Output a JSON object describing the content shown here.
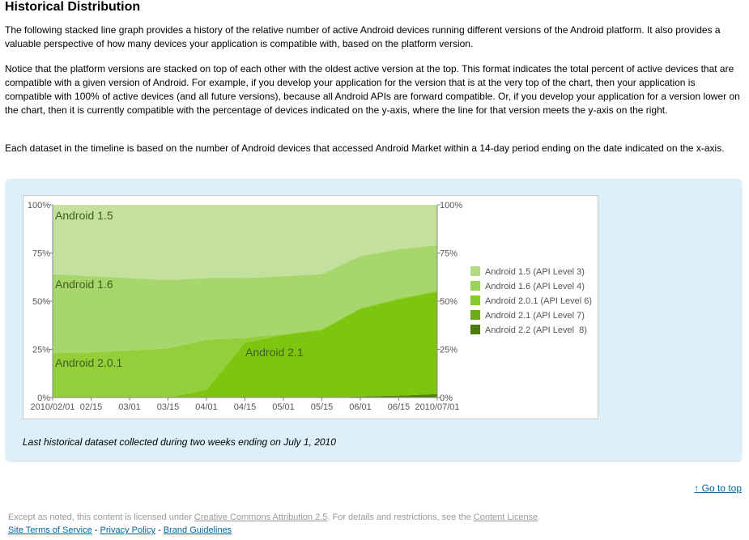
{
  "header": {
    "title": "Historical Distribution"
  },
  "paragraphs": [
    "The following stacked line graph provides a history of the relative number of active Android devices running different versions of the Android platform. It also provides a valuable perspective of how many devices your application is compatible with, based on the platform version.",
    "Notice that the platform versions are stacked on top of each other with the oldest active version at the top. This format indicates the total percent of active devices that are compatible with a given version of Android. For example, if you develop your application for the version that is at the very top of the chart, then your application is compatible with 100% of active devices (and all future versions), because all Android APIs are forward compatible. Or, if you develop your application for a version lower on the chart, then it is currently compatible with the percentage of devices indicated on the y-axis, where the line for that version meets the y-axis on the right.",
    "Each dataset in the timeline is based on the number of Android devices that accessed Android Market within a 14-day period ending on the date indicated on the x-axis."
  ],
  "chart_data": {
    "type": "stacked_area",
    "x": [
      "2010/02/01",
      "02/15",
      "03/01",
      "03/15",
      "04/01",
      "04/15",
      "05/01",
      "05/15",
      "06/01",
      "06/15",
      "2010/07/01"
    ],
    "series": [
      {
        "name": "Android 1.5 (API Level 3)",
        "color": "#c3e09d",
        "legend_color": "#b3da85",
        "values": [
          36,
          37,
          38,
          39,
          38,
          38,
          37,
          36,
          26.5,
          23,
          21
        ]
      },
      {
        "name": "Android 1.6 (API Level 4)",
        "color": "#a6d66c",
        "legend_color": "#9cd25a",
        "values": [
          41,
          39.5,
          37.5,
          35.5,
          32,
          31,
          30,
          28.5,
          27,
          25.5,
          23.5
        ]
      },
      {
        "name": "Android 2.0.1 (API Level 6)",
        "color": "#93cf3a",
        "legend_color": "#88c92e",
        "values": [
          23,
          23.5,
          24.5,
          25.5,
          26,
          2.5,
          0.5,
          0.5,
          0.5,
          0.5,
          0.5
        ]
      },
      {
        "name": "Android 2.1 (API Level 7)",
        "color": "#7ec511",
        "legend_color": "#6ea81d",
        "values": [
          0,
          0,
          0,
          0,
          4,
          28.5,
          32.5,
          35,
          45.5,
          50,
          53.2
        ]
      },
      {
        "name": "Android 2.2 (API Level  8)",
        "color": "#53800c",
        "legend_color": "#4b7a10",
        "values": [
          0,
          0,
          0,
          0,
          0,
          0,
          0,
          0,
          0.5,
          1,
          1.8
        ]
      }
    ],
    "annotations": [
      "Android 1.5",
      "Android 1.6",
      "Android 2.0.1",
      "Android 2.1"
    ],
    "ylim": [
      0,
      100
    ],
    "yticks": [
      {
        "value": 0,
        "label": "0%"
      },
      {
        "value": 25,
        "label": "25%"
      },
      {
        "value": 50,
        "label": "50%"
      },
      {
        "value": 75,
        "label": "75%"
      },
      {
        "value": 100,
        "label": "100%"
      }
    ],
    "legend": "right"
  },
  "caption": "Last historical dataset collected during two weeks ending on July 1, 2010",
  "go_to_top": "↑ Go to top",
  "footer": {
    "license_1": "Except as noted, this content is licensed under ",
    "license_link": "Creative Commons Attribution 2.5",
    "license_2": ". For details and restrictions, see the ",
    "content_license": "Content License",
    "license_3": ".",
    "links": [
      "Site Terms of Service",
      "Privacy Policy",
      "Brand Guidelines"
    ],
    "separator": "-"
  }
}
